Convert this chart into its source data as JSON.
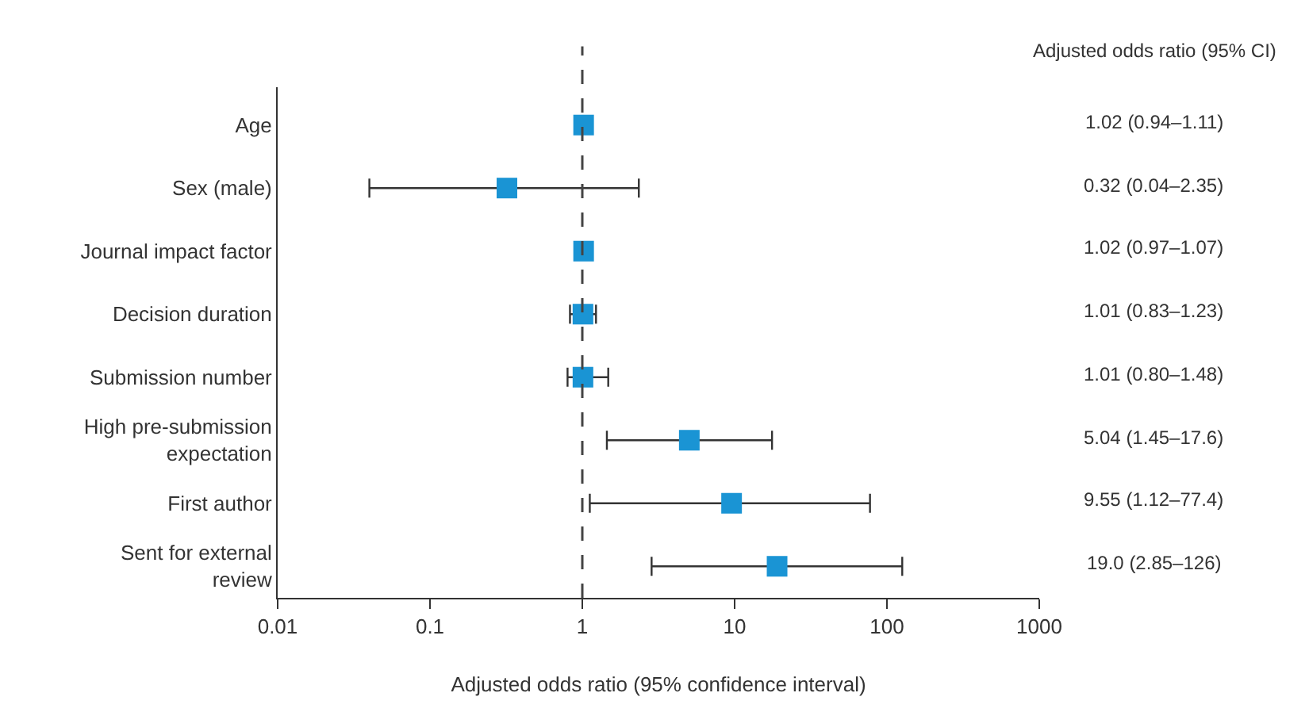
{
  "chart_data": {
    "type": "scatter",
    "orientation": "horizontal",
    "xlabel": "Adjusted odds ratio (95% confidence interval)",
    "categories": [
      "Age",
      "Sex (male)",
      "Journal impact factor",
      "Decision duration",
      "Submission number",
      "High pre-submission expectation",
      "First author",
      "Sent for external review"
    ],
    "series": [
      {
        "color": "#1a94d4",
        "values": [
          1.02,
          0.32,
          1.02,
          1.01,
          1.01,
          5.04,
          9.55,
          19.0
        ],
        "errors": [
          null,
          [
            0.04,
            2.35
          ],
          [
            0.97,
            1.07
          ],
          [
            0.83,
            1.23
          ],
          [
            0.8,
            1.48
          ],
          [
            1.45,
            17.6
          ],
          [
            1.12,
            77.4
          ],
          [
            2.85,
            126
          ]
        ]
      }
    ],
    "log": "x",
    "xlim": [
      0.01,
      1000
    ],
    "xticks": [
      0.01,
      0.1,
      1,
      10,
      100,
      1000
    ],
    "marker": "square",
    "ref_lines": [
      {
        "axis": "x",
        "value": 1,
        "color": "#444444",
        "line_style": "dashed"
      }
    ],
    "annotations": [
      "Adjusted odds ratio (95% CI)",
      "1.02 (0.94–1.11)",
      "0.32 (0.04–2.35)",
      "1.02 (0.97–1.07)",
      "1.01 (0.83–1.23)",
      "1.01 (0.80–1.48)",
      "5.04 (1.45–17.6)",
      "9.55 (1.12–77.4)",
      "19.0 (2.85–126)"
    ]
  }
}
